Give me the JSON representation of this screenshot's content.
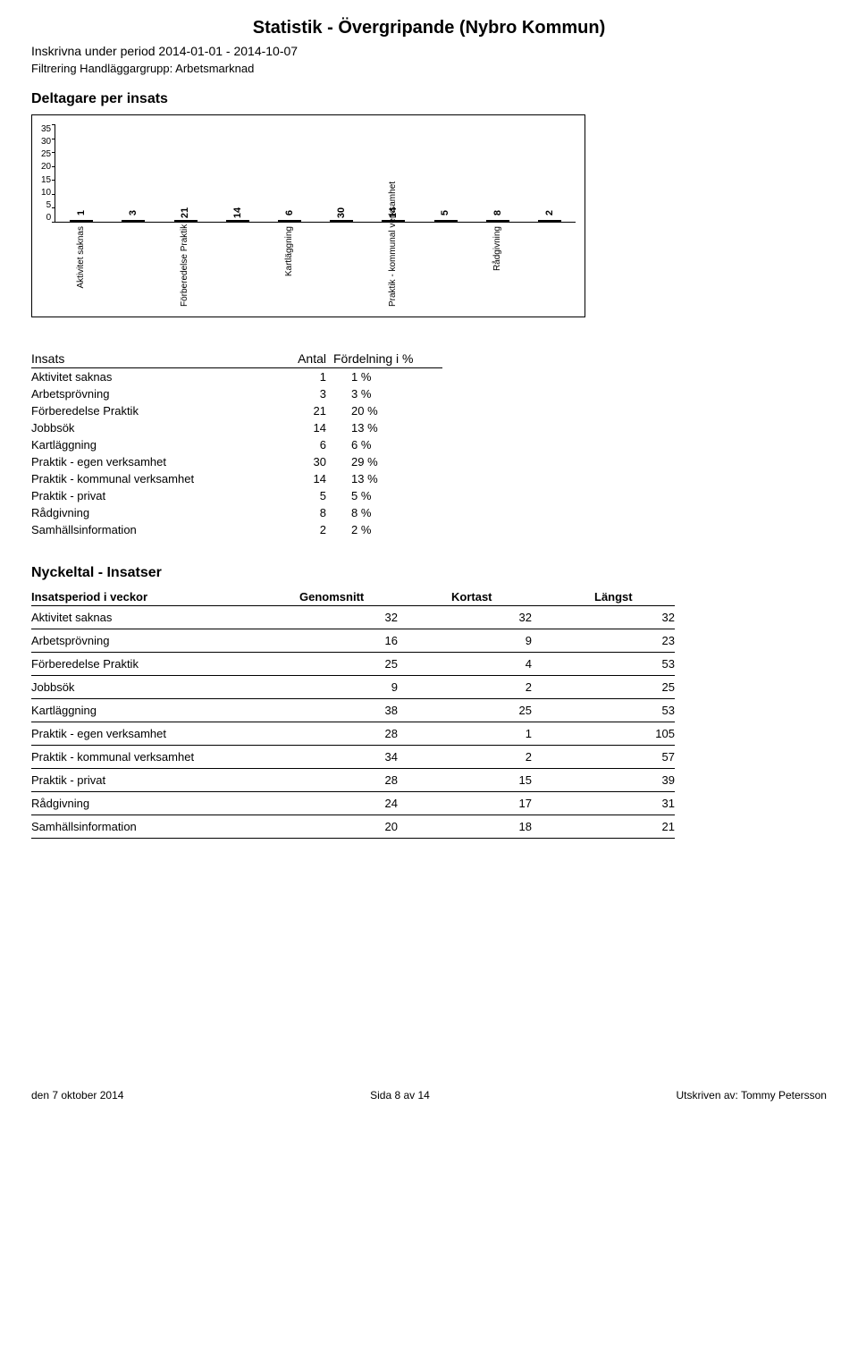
{
  "header": {
    "title": "Statistik - Övergripande  (Nybro Kommun)",
    "subline": "Inskrivna under period 2014-01-01 - 2014-10-07",
    "filter": "Filtrering Handläggargrupp: Arbetsmarknad"
  },
  "chart_section": {
    "heading": "Deltagare per insats",
    "chart": {
      "type": "bar",
      "ymax": 35,
      "yticks": [
        35,
        30,
        25,
        20,
        15,
        10,
        5,
        0
      ],
      "bar_fill": "#ffffff",
      "bar_border": "#000000",
      "background": "#ffffff",
      "categories": [
        "Aktivitet saknas",
        "Arbetsprövning",
        "Förberedelse Praktik",
        "Jobbsök",
        "Kartläggning",
        "Praktik - egen verksamhet",
        "Praktik - kommunal verksamhet",
        "Praktik - privat",
        "Rådgivning",
        "Samhällsinformation"
      ],
      "x_labels_visible": [
        "Aktivitet saknas",
        "",
        "Förberedelse Praktik",
        "",
        "Kartläggning",
        "",
        "Praktik - kommunal verksamhet",
        "",
        "Rådgivning",
        ""
      ],
      "values": [
        1,
        3,
        21,
        14,
        6,
        30,
        14,
        5,
        8,
        2
      ],
      "label_fontsize": 10
    }
  },
  "table1": {
    "heading_insats": "Insats",
    "heading_antal": "Antal",
    "heading_ford": "Fördelning i %",
    "rows": [
      {
        "name": "Aktivitet saknas",
        "antal": "1",
        "pct": "1 %"
      },
      {
        "name": "Arbetsprövning",
        "antal": "3",
        "pct": "3 %"
      },
      {
        "name": "Förberedelse Praktik",
        "antal": "21",
        "pct": "20 %"
      },
      {
        "name": "Jobbsök",
        "antal": "14",
        "pct": "13 %"
      },
      {
        "name": "Kartläggning",
        "antal": "6",
        "pct": "6 %"
      },
      {
        "name": "Praktik - egen verksamhet",
        "antal": "30",
        "pct": "29 %"
      },
      {
        "name": "Praktik - kommunal verksamhet",
        "antal": "14",
        "pct": "13 %"
      },
      {
        "name": "Praktik - privat",
        "antal": "5",
        "pct": "5 %"
      },
      {
        "name": "Rådgivning",
        "antal": "8",
        "pct": "8 %"
      },
      {
        "name": "Samhällsinformation",
        "antal": "2",
        "pct": "2 %"
      }
    ]
  },
  "table2": {
    "heading": "Nyckeltal - Insatser",
    "col1": "Insatsperiod i veckor",
    "col2": "Genomsnitt",
    "col3": "Kortast",
    "col4": "Längst",
    "rows": [
      {
        "name": "Aktivitet saknas",
        "g": "32",
        "k": "32",
        "l": "32"
      },
      {
        "name": "Arbetsprövning",
        "g": "16",
        "k": "9",
        "l": "23"
      },
      {
        "name": "Förberedelse Praktik",
        "g": "25",
        "k": "4",
        "l": "53"
      },
      {
        "name": "Jobbsök",
        "g": "9",
        "k": "2",
        "l": "25"
      },
      {
        "name": "Kartläggning",
        "g": "38",
        "k": "25",
        "l": "53"
      },
      {
        "name": "Praktik - egen verksamhet",
        "g": "28",
        "k": "1",
        "l": "105"
      },
      {
        "name": "Praktik - kommunal verksamhet",
        "g": "34",
        "k": "2",
        "l": "57"
      },
      {
        "name": "Praktik - privat",
        "g": "28",
        "k": "15",
        "l": "39"
      },
      {
        "name": "Rådgivning",
        "g": "24",
        "k": "17",
        "l": "31"
      },
      {
        "name": "Samhällsinformation",
        "g": "20",
        "k": "18",
        "l": "21"
      }
    ]
  },
  "footer": {
    "left": "den 7 oktober 2014",
    "center": "Sida 8 av 14",
    "right": "Utskriven av: Tommy Petersson"
  }
}
